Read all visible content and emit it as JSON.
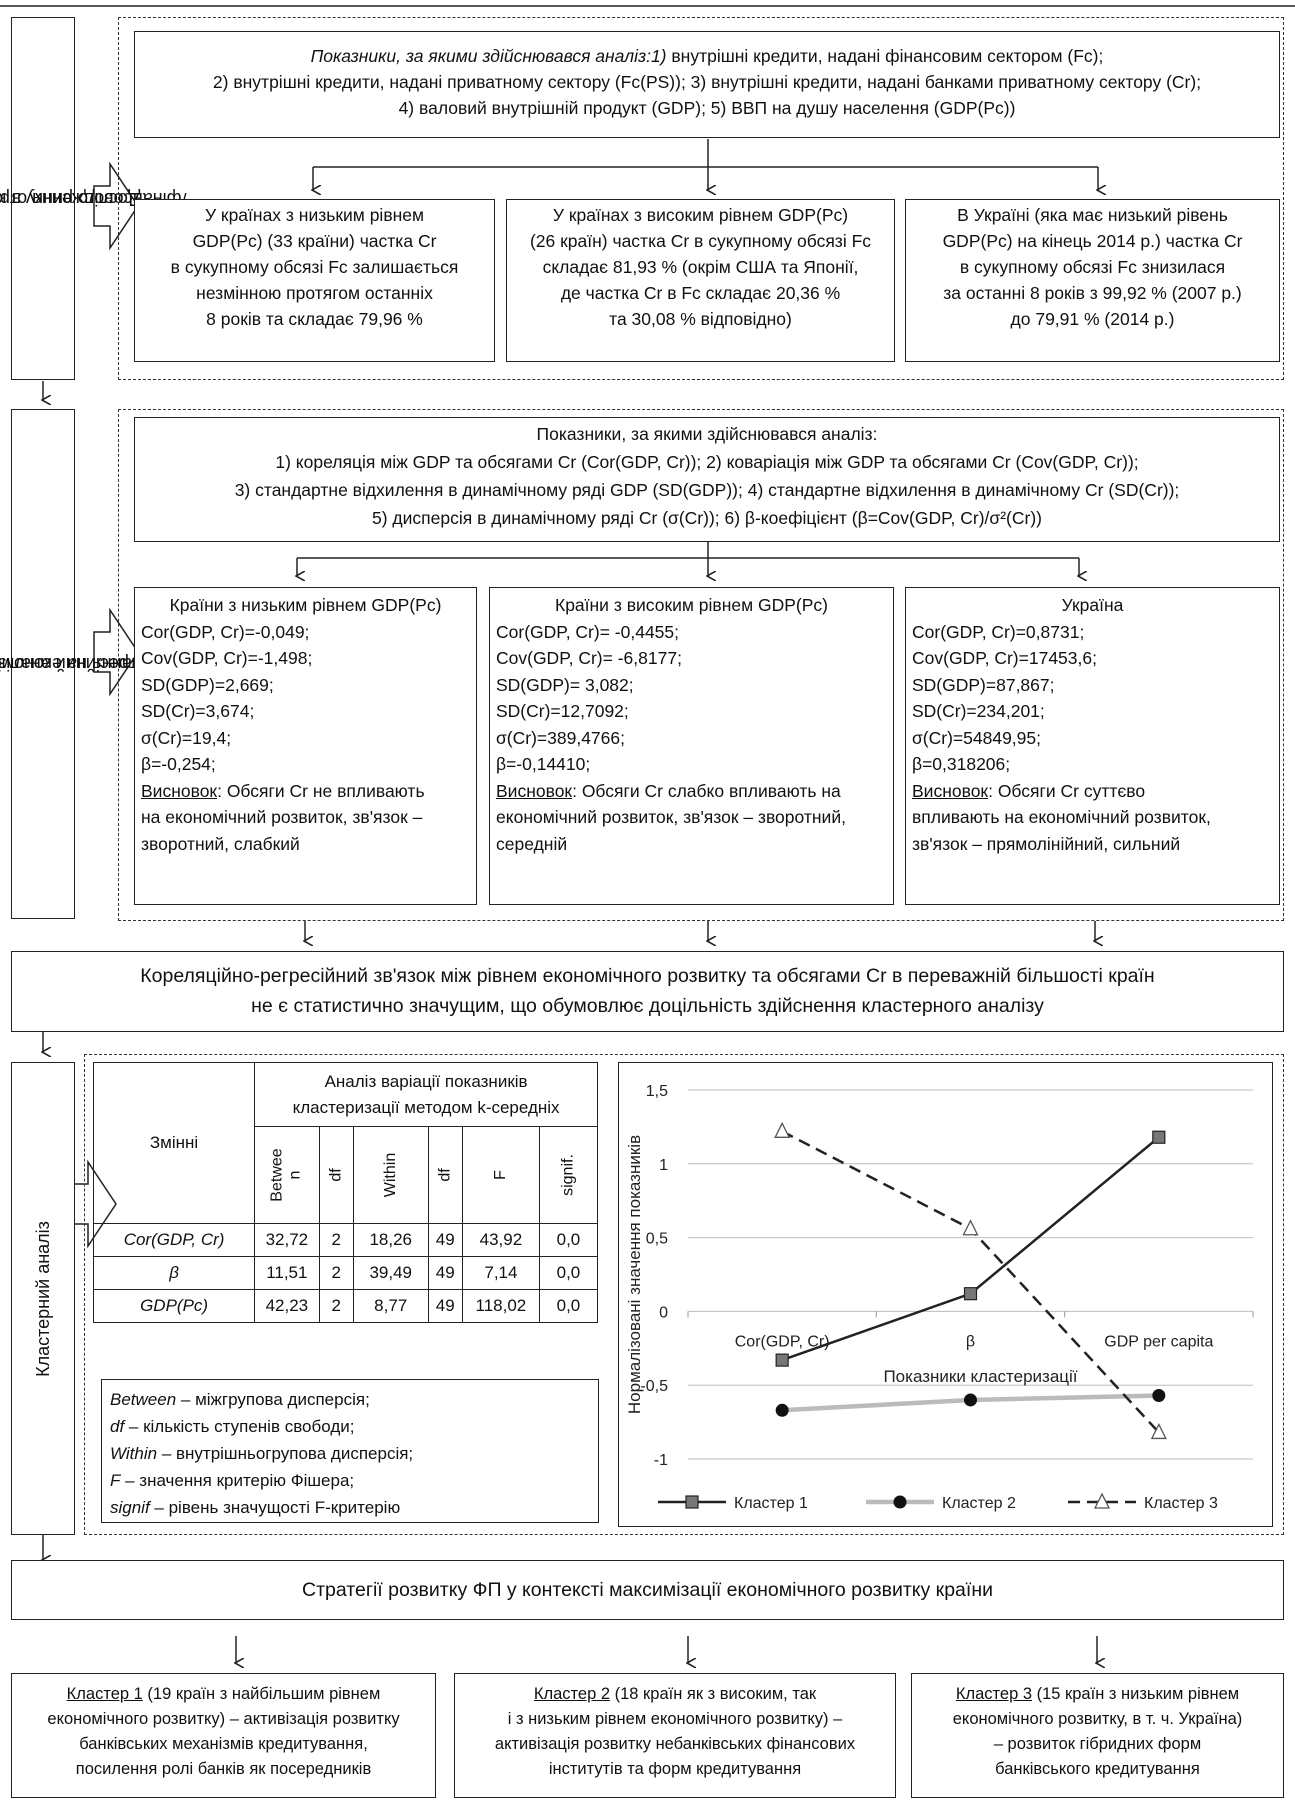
{
  "section1": {
    "label_line1": "Дослідження структури",
    "label_line2": "/фінансового ринку в країнах світу",
    "indicators_italic": "Показники, за якими здійснювався аналіз:1)",
    "indicators_line1": " внутрішні кредити, надані фінансовим сектором (Fc);",
    "indicators_line2": "2) внутрішні кредити, надані приватному сектору (Fc(PS)); 3) внутрішні кредити, надані банками приватному сектору (Cr);",
    "indicators_line3": "4) валовий внутрішній продукт (GDP); 5) ВВП на душу населення (GDP(Pc))",
    "low": [
      "У країнах з низьким рівнем",
      "GDP(Pc) (33 країни) частка Cr",
      "в сукупному обсязі Fc залишається",
      "незмінною протягом останніх",
      "8 років та складає 79,96 %"
    ],
    "high": [
      "У країнах з високим рівнем GDP(Pc)",
      "(26 країн) частка Cr в сукупному обсязі Fc",
      "складає 81,93 % (окрім США та Японії,",
      "де частка Cr в Fc складає 20,36 %",
      "та 30,08 % відповідно)"
    ],
    "ukraine": [
      "В Україні (яка має низький рівень",
      "GDP(Pc) на кінець 2014 р.) частка Cr",
      "в сукупному обсязі Fc знизилася",
      "за останні 8 років з 99,92 % (2007 р.)",
      "до 79,91 % (2014 р.)"
    ]
  },
  "section2": {
    "label_line1": "Кореляційно-регресійний аналіз впливу банків-ського",
    "label_line2": "кредитування на економічний розвиток",
    "indicators": [
      "Показники, за якими здійснювався аналіз:",
      "1) кореляція між GDP та обсягами Cr (Cor(GDP, Cr)); 2) коваріація між GDP та обсягами Cr (Cov(GDP, Cr));",
      "3) стандартне відхилення в динамічному ряді GDP (SD(GDP)); 4) стандартне відхилення в динамічному Cr (SD(Cr));",
      "5) дисперсія в динамічному ряді Cr (σ(Cr)); 6) β-коефіцієнт (β=Cov(GDP, Cr)/σ²(Cr))"
    ],
    "low": {
      "title": "Країни з низьким рівнем GDP(Pc)",
      "lines": [
        "Cor(GDP, Cr)=-0,049;",
        "Cov(GDP, Cr)=-1,498;",
        "SD(GDP)=2,669;",
        "SD(Cr)=3,674;",
        "σ(Cr)=19,4;",
        "β=-0,254;"
      ],
      "concl_label": "Висновок",
      "concl": [
        ": Обсяги Cr не впливають",
        "на економічний розвиток, зв'язок –",
        "зворотний, слабкий"
      ]
    },
    "high": {
      "title": "Країни з високим рівнем GDP(Pc)",
      "lines": [
        "Cor(GDP, Cr)= -0,4455;",
        "Cov(GDP, Cr)= -6,8177;",
        "SD(GDP)= 3,082;",
        "SD(Cr)=12,7092;",
        "σ(Cr)=389,4766;",
        "β=-0,14410;"
      ],
      "concl_label": "Висновок",
      "concl": [
        ": Обсяги Cr слабко впливають на",
        "економічний розвиток, зв'язок – зворотний,",
        "середній"
      ]
    },
    "ukraine": {
      "title": "Україна",
      "lines": [
        "Cor(GDP, Cr)=0,8731;",
        "Cov(GDP, Cr)=17453,6;",
        "SD(GDP)=87,867;",
        "SD(Cr)=234,201;",
        "σ(Cr)=54849,95;",
        "β=0,318206;"
      ],
      "concl_label": "Висновок",
      "concl": [
        ": Обсяги Cr суттєво",
        "впливають на економічний розвиток,",
        "зв'язок – прямолінійний, сильний"
      ]
    }
  },
  "summary": [
    "Кореляційно-регресійний зв'язок між рівнем економічного розвитку та обсягами Cr в переважній більшості країн",
    "не є статистично значущим, що обумовлює доцільність здійснення кластерного аналізу"
  ],
  "section3": {
    "label": "Кластерний аналіз",
    "table": {
      "variables_header": "Змінні",
      "group_header_line1": "Аналіз варіації показників",
      "group_header_line2": "кластеризації методом k-середніх",
      "cols": [
        "Betwee n",
        "df",
        "Within",
        "df",
        "F",
        "signif."
      ],
      "rows": [
        {
          "name": "Cor(GDP, Cr)",
          "values": [
            "32,72",
            "2",
            "18,26",
            "49",
            "43,92",
            "0,0"
          ]
        },
        {
          "name": "β",
          "values": [
            "11,51",
            "2",
            "39,49",
            "49",
            "7,14",
            "0,0"
          ]
        },
        {
          "name": "GDP(Pc)",
          "values": [
            "42,23",
            "2",
            "8,77",
            "49",
            "118,02",
            "0,0"
          ]
        }
      ]
    },
    "legend": [
      {
        "term": "Between",
        "desc": " – міжгрупова дисперсія;"
      },
      {
        "term": "df",
        "desc": " – кількість ступенів свободи;"
      },
      {
        "term": "Within",
        "desc": " – внутрішньогрупова дисперсія;"
      },
      {
        "term": "F",
        "desc": " – значення критерію Фішера;"
      },
      {
        "term": "signif",
        "desc": " – рівень значущості F-критерію"
      }
    ]
  },
  "chart_data": {
    "type": "line",
    "categories": [
      "Cor(GDP, Cr)",
      "β",
      "GDP per capita"
    ],
    "ylabel": "Нормалізовані значення показників",
    "xlabel": "Показники кластеризації",
    "ylim": [
      -1,
      1.5
    ],
    "yticks": [
      "1,5",
      "1",
      "0,5",
      "0",
      "-0,5",
      "-1"
    ],
    "series": [
      {
        "name": "Кластер 1",
        "values": [
          -0.33,
          0.12,
          1.18
        ],
        "color": "#222222",
        "marker": "square",
        "dash": false
      },
      {
        "name": "Кластер 2",
        "values": [
          -0.67,
          -0.6,
          -0.57
        ],
        "color": "#bbbbbb",
        "marker": "circle",
        "dash": false
      },
      {
        "name": "Кластер 3",
        "values": [
          1.22,
          0.56,
          -0.82
        ],
        "color": "#222222",
        "marker": "triangle",
        "dash": true
      }
    ]
  },
  "strategy": {
    "title": "Стратегії розвитку ФП у контексті максимізації економічного розвитку країни",
    "c1": {
      "label": "Кластер 1",
      "lines": [
        " (19 країн з найбільшим рівнем",
        "економічного розвитку) – активізація розвитку",
        "банківських механізмів кредитування,",
        "посилення ролі банків як посередників"
      ]
    },
    "c2": {
      "label": "Кластер 2",
      "lines": [
        " (18 країн як з високим, так",
        "і з низьким рівнем економічного розвитку) –",
        "активізація розвитку небанківських фінансових",
        "інститутів та форм кредитування"
      ]
    },
    "c3": {
      "label": "Кластер 3",
      "lines": [
        " (15 країн з низьким рівнем",
        "економічного розвитку, в т. ч. Україна)",
        "– розвиток гібридних форм",
        "банківського кредитування"
      ]
    }
  }
}
